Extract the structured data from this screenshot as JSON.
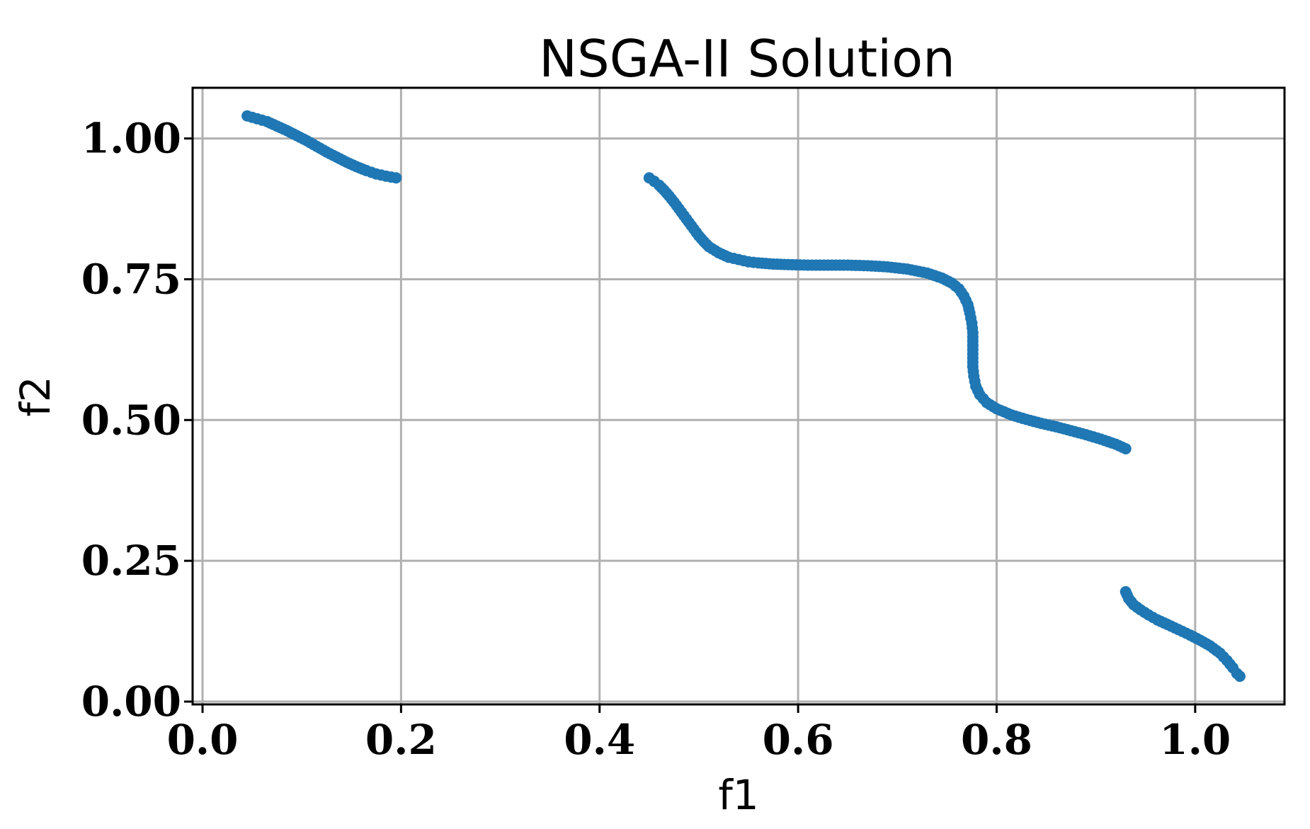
{
  "chart_data": {
    "type": "scatter",
    "title": "NSGA-II Solution",
    "xlabel": "f1",
    "ylabel": "f2",
    "xlim": [
      -0.01,
      1.09
    ],
    "ylim": [
      -0.005,
      1.09
    ],
    "xticks": [
      0.0,
      0.2,
      0.4,
      0.6,
      0.8,
      1.0
    ],
    "xtick_labels": [
      "0.0",
      "0.2",
      "0.4",
      "0.6",
      "0.8",
      "1.0"
    ],
    "yticks": [
      0.0,
      0.25,
      0.5,
      0.75,
      1.0
    ],
    "ytick_labels": [
      "0.00",
      "0.25",
      "0.50",
      "0.75",
      "1.00"
    ],
    "grid": true,
    "marker_color": "#1f77b4",
    "series": [
      {
        "points": [
          [
            0.045,
            1.04
          ],
          [
            0.055,
            1.035
          ],
          [
            0.065,
            1.03
          ],
          [
            0.075,
            1.022
          ],
          [
            0.085,
            1.014
          ],
          [
            0.095,
            1.005
          ],
          [
            0.105,
            0.996
          ],
          [
            0.115,
            0.986
          ],
          [
            0.125,
            0.976
          ],
          [
            0.135,
            0.967
          ],
          [
            0.145,
            0.958
          ],
          [
            0.155,
            0.95
          ],
          [
            0.165,
            0.943
          ],
          [
            0.175,
            0.937
          ],
          [
            0.185,
            0.933
          ],
          [
            0.195,
            0.93
          ],
          [
            0.45,
            0.93
          ],
          [
            0.455,
            0.924
          ],
          [
            0.46,
            0.917
          ],
          [
            0.465,
            0.908
          ],
          [
            0.47,
            0.898
          ],
          [
            0.475,
            0.887
          ],
          [
            0.48,
            0.875
          ],
          [
            0.485,
            0.863
          ],
          [
            0.49,
            0.851
          ],
          [
            0.495,
            0.839
          ],
          [
            0.5,
            0.827
          ],
          [
            0.505,
            0.817
          ],
          [
            0.51,
            0.808
          ],
          [
            0.52,
            0.797
          ],
          [
            0.53,
            0.789
          ],
          [
            0.54,
            0.785
          ],
          [
            0.55,
            0.781
          ],
          [
            0.56,
            0.779
          ],
          [
            0.575,
            0.777
          ],
          [
            0.59,
            0.776
          ],
          [
            0.61,
            0.775
          ],
          [
            0.63,
            0.775
          ],
          [
            0.65,
            0.775
          ],
          [
            0.67,
            0.774
          ],
          [
            0.69,
            0.772
          ],
          [
            0.71,
            0.768
          ],
          [
            0.73,
            0.761
          ],
          [
            0.745,
            0.752
          ],
          [
            0.755,
            0.743
          ],
          [
            0.762,
            0.733
          ],
          [
            0.767,
            0.72
          ],
          [
            0.771,
            0.705
          ],
          [
            0.773,
            0.69
          ],
          [
            0.775,
            0.672
          ],
          [
            0.776,
            0.655
          ],
          [
            0.776,
            0.64
          ],
          [
            0.776,
            0.61
          ],
          [
            0.776,
            0.595
          ],
          [
            0.777,
            0.578
          ],
          [
            0.779,
            0.56
          ],
          [
            0.783,
            0.545
          ],
          [
            0.79,
            0.531
          ],
          [
            0.8,
            0.52
          ],
          [
            0.815,
            0.509
          ],
          [
            0.83,
            0.501
          ],
          [
            0.845,
            0.494
          ],
          [
            0.86,
            0.488
          ],
          [
            0.875,
            0.481
          ],
          [
            0.89,
            0.474
          ],
          [
            0.905,
            0.466
          ],
          [
            0.92,
            0.457
          ],
          [
            0.93,
            0.449
          ],
          [
            0.93,
            0.195
          ],
          [
            0.933,
            0.183
          ],
          [
            0.938,
            0.172
          ],
          [
            0.945,
            0.163
          ],
          [
            0.953,
            0.154
          ],
          [
            0.962,
            0.145
          ],
          [
            0.972,
            0.137
          ],
          [
            0.983,
            0.128
          ],
          [
            0.995,
            0.118
          ],
          [
            1.005,
            0.109
          ],
          [
            1.015,
            0.099
          ],
          [
            1.025,
            0.086
          ],
          [
            1.032,
            0.073
          ],
          [
            1.038,
            0.06
          ],
          [
            1.042,
            0.05
          ],
          [
            1.045,
            0.045
          ]
        ]
      }
    ]
  }
}
